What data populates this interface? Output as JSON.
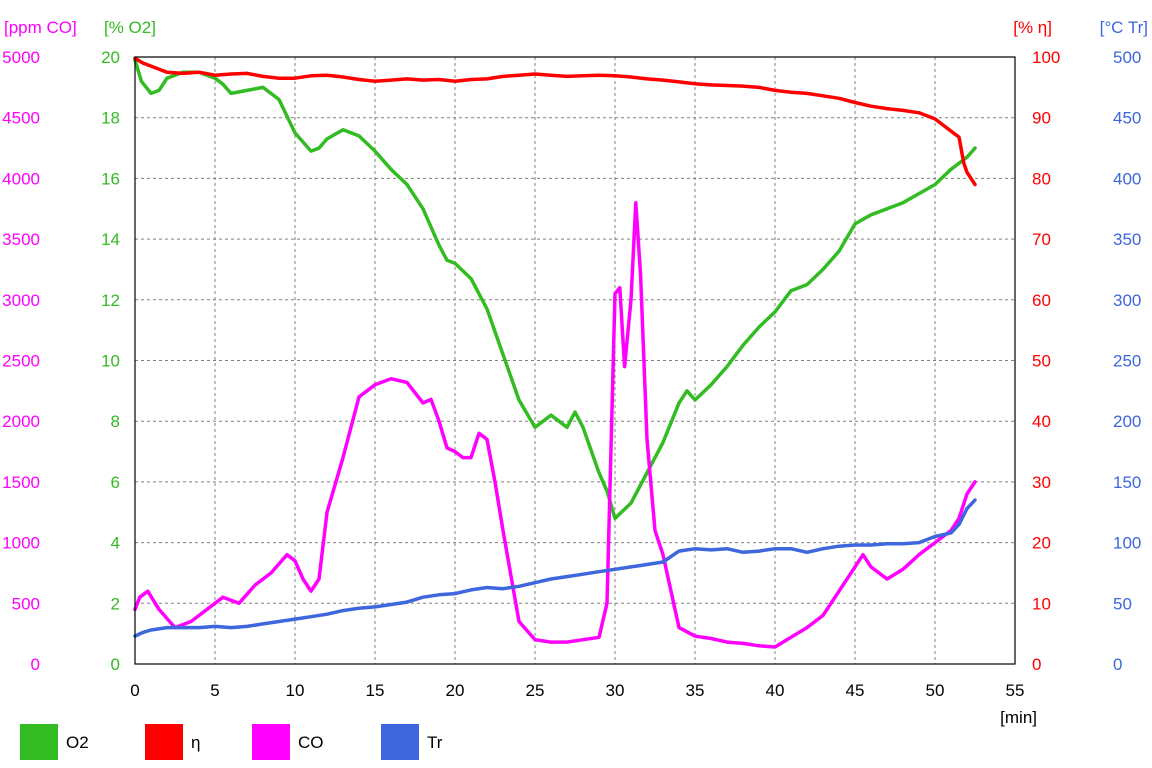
{
  "chart_data": {
    "type": "line",
    "xlabel": "[min]",
    "xlim": [
      0,
      55
    ],
    "x_ticks": [
      "0",
      "5",
      "10",
      "15",
      "20",
      "25",
      "30",
      "35",
      "40",
      "45",
      "50",
      "55"
    ],
    "axes": [
      {
        "key": "co",
        "label": "[ppm CO]",
        "color": "#ff00ff",
        "range": [
          0,
          5000
        ],
        "ticks": [
          "0",
          "500",
          "1000",
          "1500",
          "2000",
          "2500",
          "3000",
          "3500",
          "4000",
          "4500",
          "5000"
        ]
      },
      {
        "key": "o2",
        "label": "[% O2]",
        "color": "#33bb22",
        "range": [
          0,
          20
        ],
        "ticks": [
          "0",
          "2",
          "4",
          "6",
          "8",
          "10",
          "12",
          "14",
          "16",
          "18",
          "20"
        ]
      },
      {
        "key": "eta",
        "label": "[% η]",
        "color": "#ff0000",
        "range": [
          0,
          100
        ],
        "ticks": [
          "0",
          "10",
          "20",
          "30",
          "40",
          "50",
          "60",
          "70",
          "80",
          "90",
          "100"
        ]
      },
      {
        "key": "tr",
        "label": "[°C Tr]",
        "color": "#3e66dd",
        "range": [
          0,
          500
        ],
        "ticks": [
          "0",
          "50",
          "100",
          "150",
          "200",
          "250",
          "300",
          "350",
          "400",
          "450",
          "500"
        ]
      }
    ],
    "series": [
      {
        "name": "O2",
        "axis": "o2",
        "color": "#33bb22",
        "x": [
          0,
          0.4,
          1,
          1.5,
          2,
          3,
          4,
          5,
          5.5,
          6,
          7,
          8,
          9,
          10,
          11,
          11.5,
          12,
          13,
          14,
          15,
          16,
          17,
          18,
          19,
          19.5,
          20,
          21,
          22,
          23,
          24,
          25,
          26,
          27,
          27.5,
          28,
          29,
          29.5,
          30,
          31,
          32,
          33,
          34,
          34.5,
          35,
          36,
          37,
          38,
          39,
          40,
          41,
          42,
          43,
          44,
          45,
          46,
          47,
          48,
          49,
          50,
          51,
          52,
          52.5
        ],
        "y": [
          19.9,
          19.2,
          18.8,
          18.9,
          19.3,
          19.5,
          19.5,
          19.3,
          19.1,
          18.8,
          18.9,
          19.0,
          18.6,
          17.5,
          16.9,
          17.0,
          17.3,
          17.6,
          17.4,
          16.9,
          16.3,
          15.8,
          15.0,
          13.8,
          13.3,
          13.2,
          12.7,
          11.7,
          10.2,
          8.7,
          7.8,
          8.2,
          7.8,
          8.3,
          7.8,
          6.3,
          5.7,
          4.8,
          5.3,
          6.3,
          7.3,
          8.6,
          9.0,
          8.7,
          9.2,
          9.8,
          10.5,
          11.1,
          11.6,
          12.3,
          12.5,
          13.0,
          13.6,
          14.5,
          14.8,
          15.0,
          15.2,
          15.5,
          15.8,
          16.3,
          16.7,
          17.0
        ]
      },
      {
        "name": "η",
        "axis": "eta",
        "color": "#ff0000",
        "x": [
          0,
          0.5,
          1,
          2,
          3,
          4,
          5,
          6,
          7,
          8,
          9,
          10,
          11,
          12,
          13,
          14,
          15,
          16,
          17,
          18,
          19,
          20,
          21,
          22,
          23,
          24,
          25,
          26,
          27,
          28,
          29,
          30,
          31,
          32,
          33,
          34,
          35,
          36,
          37,
          38,
          39,
          40,
          41,
          42,
          43,
          44,
          45,
          46,
          47,
          48,
          49,
          50,
          50.5,
          51,
          51.5,
          51.8,
          52,
          52.5
        ],
        "y": [
          99.8,
          99,
          98.5,
          97.5,
          97.3,
          97.5,
          97.0,
          97.2,
          97.3,
          96.8,
          96.5,
          96.5,
          96.9,
          97.0,
          96.7,
          96.3,
          96.0,
          96.2,
          96.4,
          96.2,
          96.3,
          96.0,
          96.3,
          96.4,
          96.8,
          97.0,
          97.2,
          97.0,
          96.8,
          96.9,
          97.0,
          96.9,
          96.7,
          96.4,
          96.2,
          95.9,
          95.6,
          95.4,
          95.3,
          95.2,
          95.0,
          94.5,
          94.2,
          94.0,
          93.6,
          93.2,
          92.5,
          91.9,
          91.5,
          91.2,
          90.8,
          89.8,
          88.8,
          87.8,
          86.8,
          82.5,
          81.0,
          79.0
        ]
      },
      {
        "name": "CO",
        "axis": "co",
        "color": "#ff00ff",
        "x": [
          0,
          0.3,
          0.8,
          1.5,
          2.5,
          3.5,
          4.5,
          5.5,
          6.5,
          7.5,
          8.5,
          9.5,
          10,
          10.5,
          11,
          11.5,
          12,
          13,
          14,
          15,
          16,
          17,
          18,
          18.5,
          19,
          19.5,
          20,
          20.5,
          21,
          21.5,
          22,
          22.5,
          23,
          24,
          25,
          26,
          27,
          28,
          29,
          29.5,
          30,
          30.3,
          30.6,
          31,
          31.3,
          31.6,
          32,
          32.5,
          33,
          33.5,
          34,
          35,
          36,
          37,
          38,
          39,
          40,
          41,
          42,
          43,
          44,
          45,
          45.5,
          46,
          47,
          48,
          49,
          50,
          51,
          51.5,
          52,
          52.5
        ],
        "y": [
          450,
          550,
          600,
          450,
          300,
          350,
          450,
          550,
          500,
          650,
          750,
          900,
          850,
          700,
          600,
          700,
          1250,
          1700,
          2200,
          2300,
          2350,
          2320,
          2150,
          2180,
          2000,
          1780,
          1750,
          1700,
          1700,
          1900,
          1850,
          1500,
          1100,
          350,
          200,
          180,
          180,
          200,
          220,
          500,
          3050,
          3100,
          2450,
          3000,
          3800,
          3200,
          1850,
          1100,
          900,
          600,
          300,
          230,
          210,
          180,
          170,
          150,
          140,
          220,
          300,
          400,
          600,
          800,
          900,
          800,
          700,
          780,
          900,
          1000,
          1100,
          1200,
          1400,
          1500
        ]
      },
      {
        "name": "Tr",
        "axis": "tr",
        "color": "#3e66dd",
        "x": [
          0,
          0.5,
          1,
          2,
          3,
          4,
          5,
          6,
          7,
          8,
          9,
          10,
          11,
          12,
          13,
          14,
          15,
          16,
          17,
          18,
          19,
          20,
          21,
          22,
          23,
          24,
          25,
          26,
          27,
          28,
          29,
          30,
          31,
          32,
          33,
          34,
          35,
          36,
          37,
          38,
          39,
          40,
          41,
          42,
          43,
          44,
          45,
          46,
          47,
          48,
          49,
          50,
          51,
          51.5,
          52,
          52.5
        ],
        "y": [
          23,
          26,
          28,
          30,
          30,
          30,
          31,
          30,
          31,
          33,
          35,
          37,
          39,
          41,
          44,
          46,
          47,
          49,
          51,
          55,
          57,
          58,
          61,
          63,
          62,
          64,
          67,
          70,
          72,
          74,
          76,
          78,
          80,
          82,
          84,
          93,
          95,
          94,
          95,
          92,
          93,
          95,
          95,
          92,
          95,
          97,
          98,
          98,
          99,
          99,
          100,
          105,
          108,
          115,
          128,
          135
        ]
      }
    ],
    "legend": {
      "placement": "bottom",
      "items": [
        {
          "label": "O2",
          "color": "#33bb22"
        },
        {
          "label": "η",
          "color": "#ff0000"
        },
        {
          "label": "CO",
          "color": "#ff00ff"
        },
        {
          "label": "Tr",
          "color": "#3e66dd"
        }
      ]
    },
    "grid": true
  }
}
